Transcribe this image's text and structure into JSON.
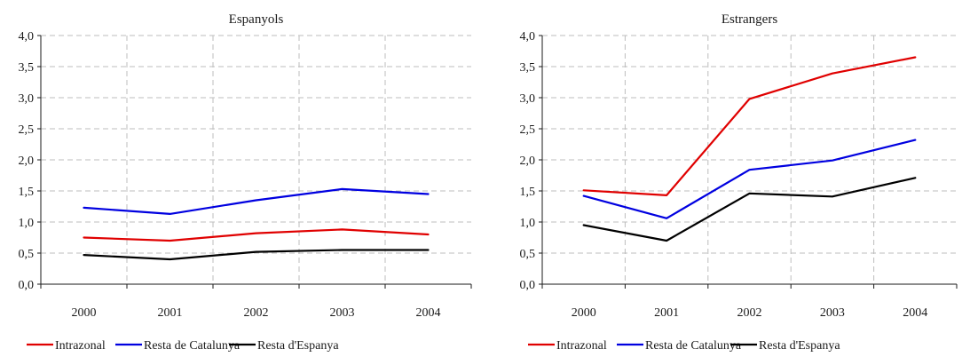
{
  "chart_data": [
    {
      "type": "line",
      "title": "Espanyols",
      "categories": [
        "2000",
        "2001",
        "2002",
        "2003",
        "2004"
      ],
      "ylim": [
        0,
        4
      ],
      "yticks": [
        "0,0",
        "0,5",
        "1,0",
        "1,5",
        "2,0",
        "2,5",
        "3,0",
        "3,5",
        "4,0"
      ],
      "grid": true,
      "legend_position": "bottom",
      "series": [
        {
          "name": "Intrazonal",
          "color": "#e00000",
          "values": [
            0.75,
            0.7,
            0.82,
            0.88,
            0.8
          ]
        },
        {
          "name": "Resta de Catalunya",
          "color": "#0000e0",
          "values": [
            1.23,
            1.13,
            1.35,
            1.53,
            1.45
          ]
        },
        {
          "name": "Resta d'Espanya",
          "color": "#000000",
          "values": [
            0.47,
            0.4,
            0.52,
            0.55,
            0.55
          ]
        }
      ]
    },
    {
      "type": "line",
      "title": "Estrangers",
      "categories": [
        "2000",
        "2001",
        "2002",
        "2003",
        "2004"
      ],
      "ylim": [
        0,
        4
      ],
      "yticks": [
        "0,0",
        "0,5",
        "1,0",
        "1,5",
        "2,0",
        "2,5",
        "3,0",
        "3,5",
        "4,0"
      ],
      "grid": true,
      "legend_position": "bottom",
      "series": [
        {
          "name": "Intrazonal",
          "color": "#e00000",
          "values": [
            1.51,
            1.43,
            2.98,
            3.39,
            3.65
          ]
        },
        {
          "name": "Resta de Catalunya",
          "color": "#0000e0",
          "values": [
            1.42,
            1.06,
            1.84,
            1.99,
            2.32
          ]
        },
        {
          "name": "Resta d'Espanya",
          "color": "#000000",
          "values": [
            0.95,
            0.7,
            1.46,
            1.41,
            1.71
          ]
        }
      ]
    }
  ]
}
